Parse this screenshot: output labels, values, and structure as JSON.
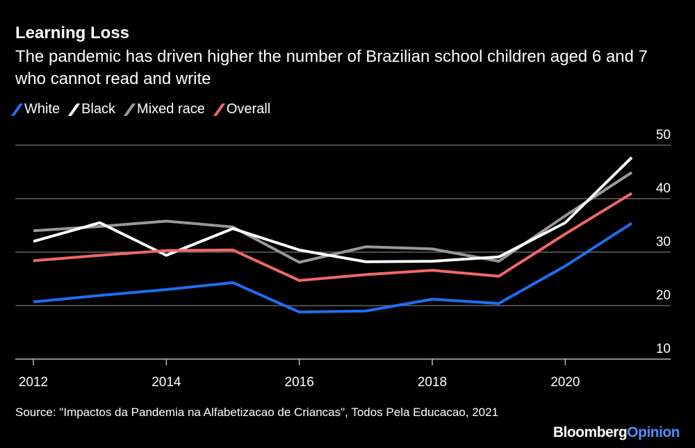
{
  "chart_data": {
    "type": "line",
    "title": "Learning Loss",
    "subtitle": "The pandemic has driven higher the number of Brazilian school children aged 6 and 7 who cannot read and write",
    "x": [
      2012,
      2013,
      2014,
      2015,
      2016,
      2017,
      2018,
      2019,
      2020,
      2021
    ],
    "x_ticks": [
      "2012",
      "2014",
      "2016",
      "2018",
      "2020"
    ],
    "y_ticks": [
      "10",
      "20",
      "30",
      "40",
      "50"
    ],
    "ylim": [
      10,
      50
    ],
    "xlim": [
      2012,
      2021
    ],
    "grid": true,
    "legend": "top-left",
    "series": [
      {
        "name": "White",
        "color": "#1f6ef2",
        "values": [
          20.7,
          21.9,
          23.0,
          24.3,
          18.8,
          19.0,
          21.2,
          20.4,
          27.4,
          35.4
        ]
      },
      {
        "name": "Black",
        "color": "#ffffff",
        "values": [
          32.0,
          35.5,
          29.4,
          34.4,
          30.4,
          28.2,
          28.3,
          29.1,
          35.5,
          47.7
        ]
      },
      {
        "name": "Mixed race",
        "color": "#999999",
        "values": [
          34.0,
          34.8,
          35.8,
          34.7,
          28.1,
          31.0,
          30.6,
          28.3,
          36.8,
          44.9
        ]
      },
      {
        "name": "Overall",
        "color": "#f06868",
        "values": [
          28.4,
          29.4,
          30.3,
          30.4,
          24.7,
          25.8,
          26.6,
          25.5,
          33.4,
          41.0
        ]
      }
    ]
  },
  "source": "Source: \"Impactos da Pandemia na Alfabetizacao de Criancas\", Todos Pela Educacao, 2021",
  "logo": {
    "part1": "Bloomberg",
    "part2": "Opinion"
  }
}
